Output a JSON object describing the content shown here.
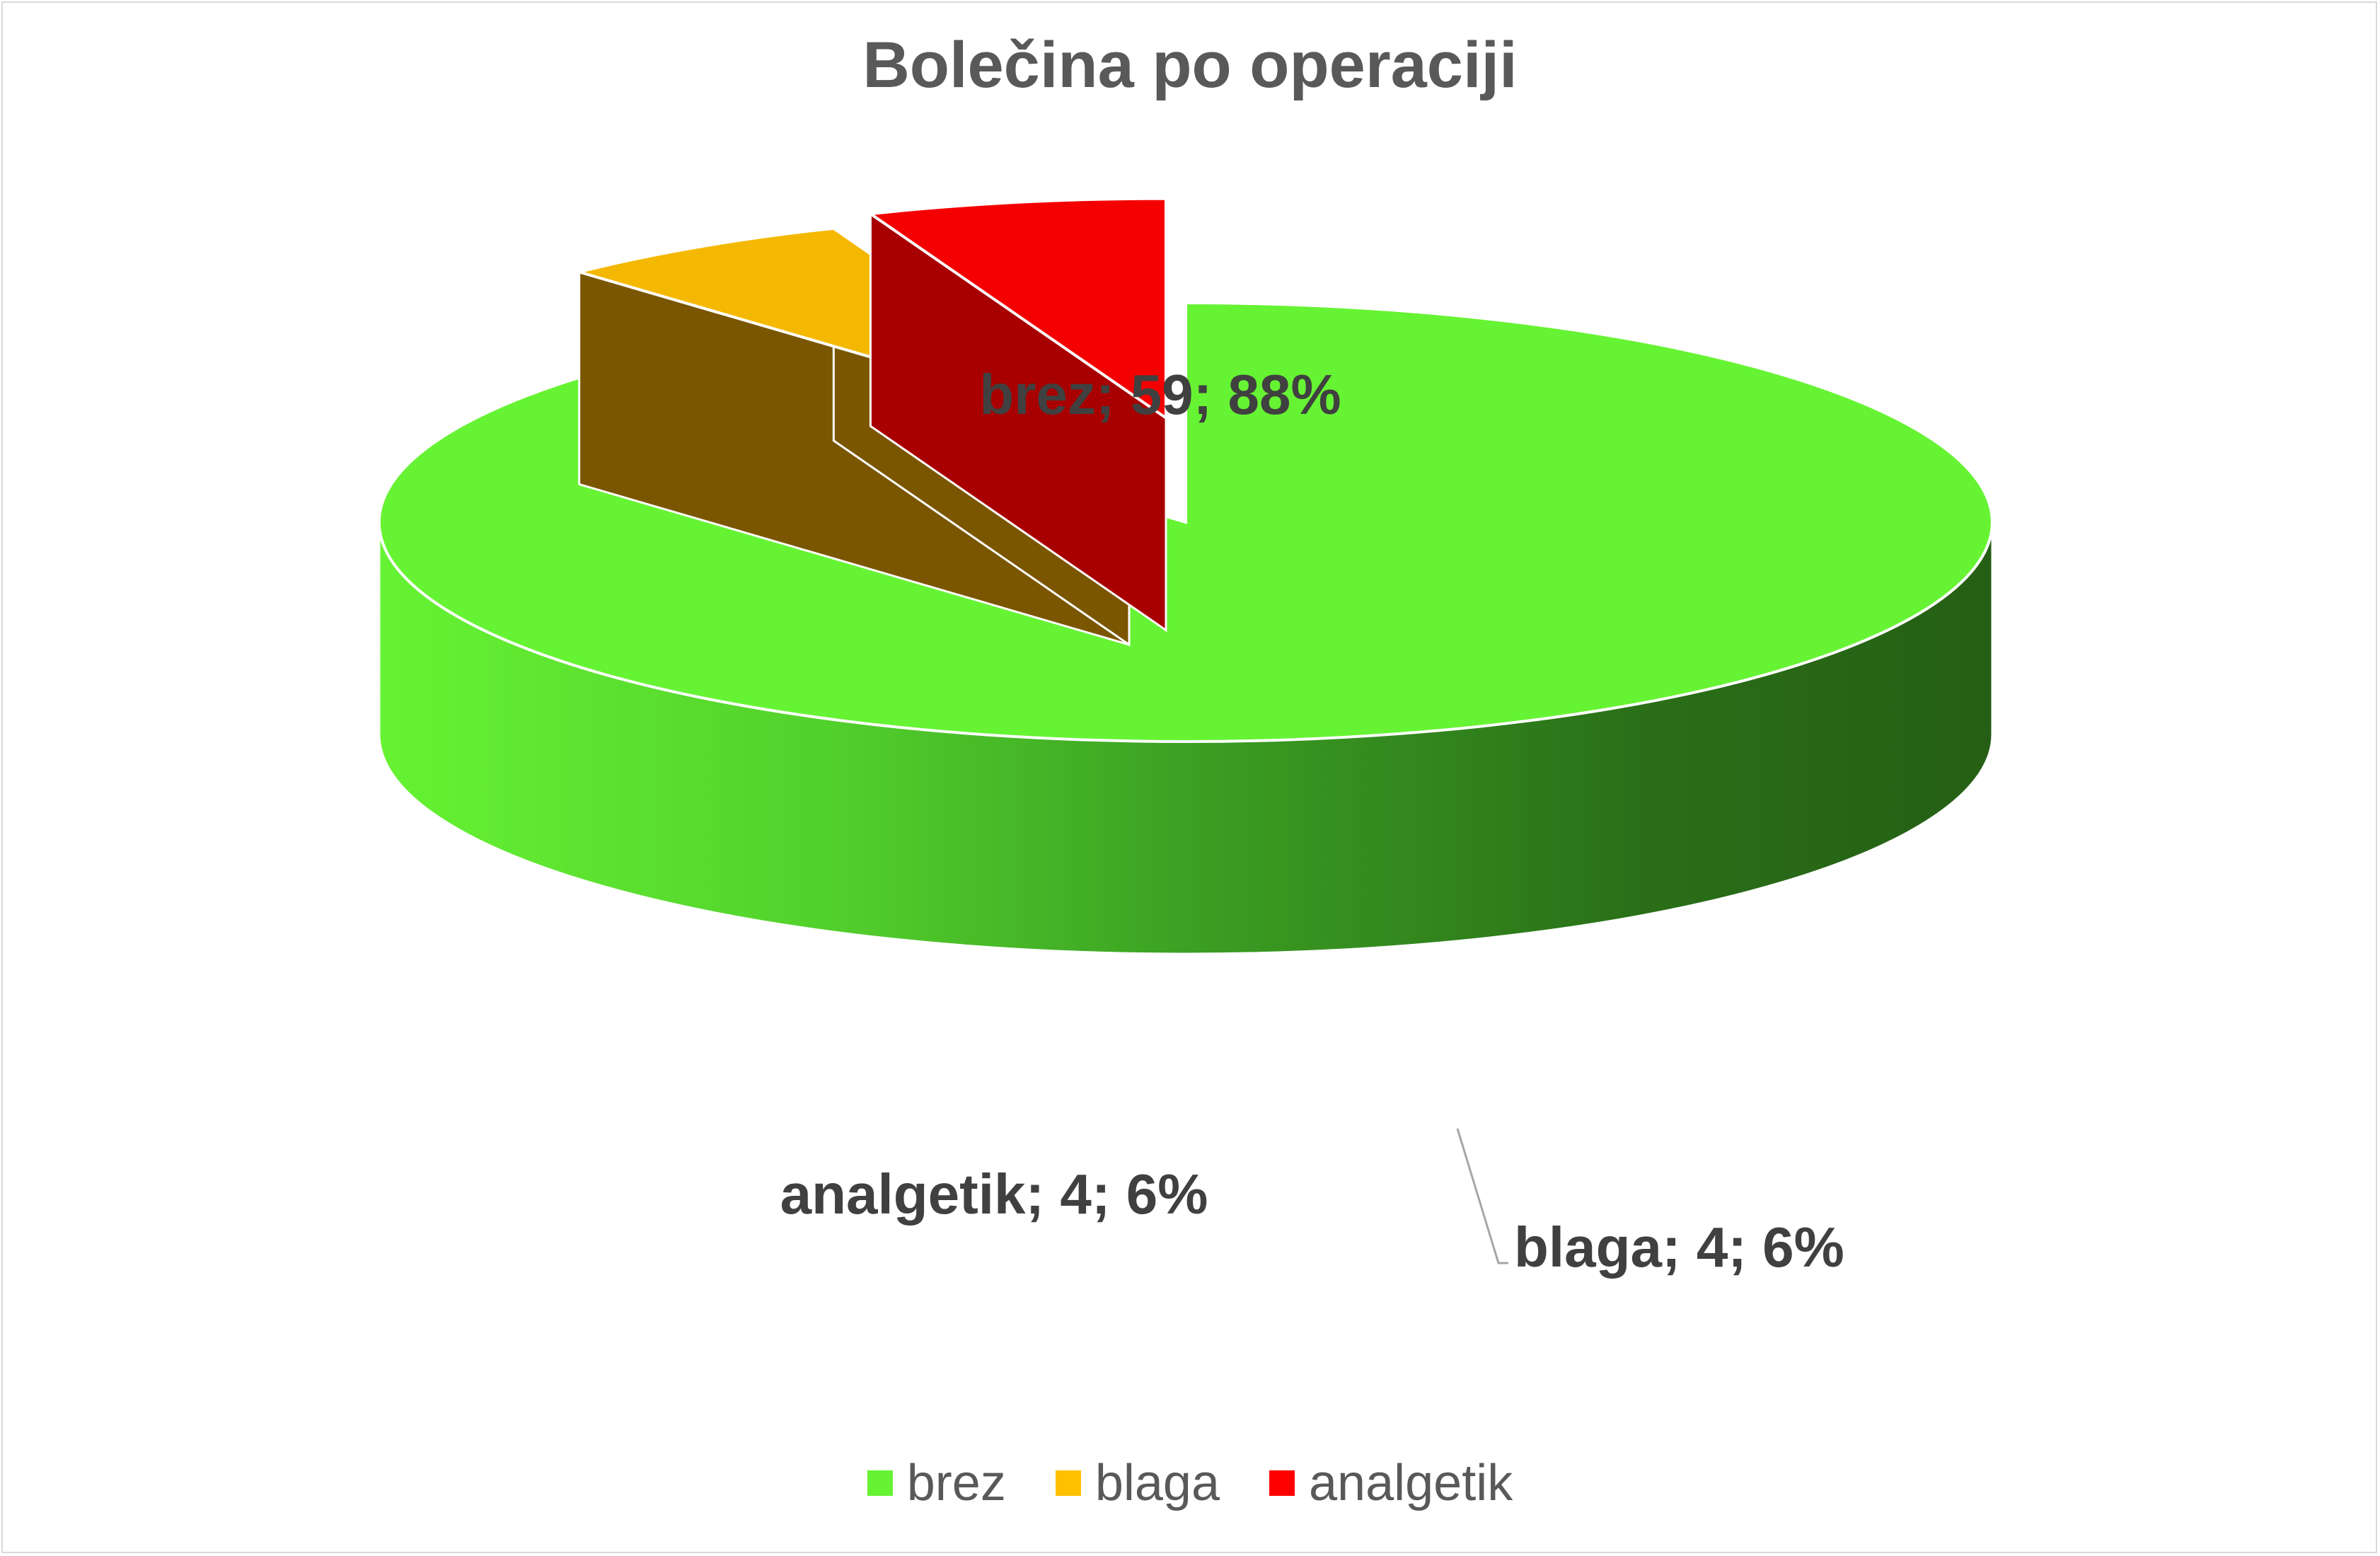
{
  "chart_data": {
    "type": "pie",
    "variant": "3d-exploded",
    "title": "Bolečina po operaciji",
    "categories": [
      "brez",
      "blaga",
      "analgetik"
    ],
    "values": [
      59,
      4,
      4
    ],
    "percentages": [
      88,
      6,
      6
    ],
    "colors": [
      "#66f333",
      "#f5b800",
      "#f50000"
    ],
    "data_labels": [
      "brez; 59; 88%",
      "blaga; 4; 6%",
      "analgetik; 4; 6%"
    ],
    "legend": {
      "position": "bottom",
      "items": [
        {
          "label": "brez",
          "color": "#66f333"
        },
        {
          "label": "blaga",
          "color": "#ffc000"
        },
        {
          "label": "analgetik",
          "color": "#ff0000"
        }
      ]
    }
  }
}
